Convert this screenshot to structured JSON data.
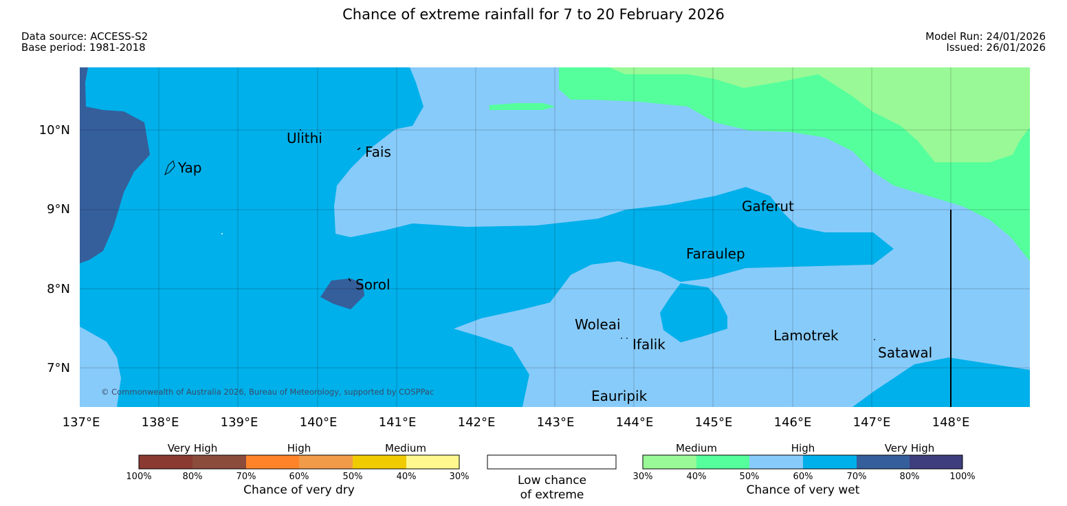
{
  "title": "Chance of extreme rainfall for 7 to 20 February 2026",
  "source": {
    "data_source": "Data source: ACCESS-S2",
    "base_period": "Base period: 1981-2018"
  },
  "run": {
    "model_run": "Model Run: 24/01/2026",
    "issued": "Issued: 26/01/2026"
  },
  "map": {
    "copyright": "© Commonwealth of Australia 2026, Bureau of Meteorology, supported by COSPPac",
    "lon_labels": [
      "137°E",
      "138°E",
      "139°E",
      "140°E",
      "141°E",
      "142°E",
      "143°E",
      "144°E",
      "145°E",
      "146°E",
      "147°E",
      "148°E"
    ],
    "lat_labels": [
      "10°N",
      "9°N",
      "8°N",
      "7°N"
    ],
    "places": [
      "Ulithi",
      "Fais",
      "Yap",
      "Gaferut",
      "Faraulep",
      "Sorol",
      "Woleai",
      "Ifalik",
      "Lamotrek",
      "Satawal",
      "Eauripik"
    ]
  },
  "colors": {
    "wet_medium_30": "#99f996",
    "wet_medium_40": "#55ff9c",
    "wet_high_50": "#87cbfa",
    "wet_high_60": "#00b0ea",
    "wet_vhigh_70": "#355f9b",
    "wet_vhigh_80": "#3e3e7e",
    "dry_vhigh_100": "#8b3a32",
    "dry_vhigh_80": "#8c4c3c",
    "dry_high_70": "#ff8429",
    "dry_high_60": "#f19b48",
    "dry_med_50": "#f0cb00",
    "dry_med_40": "#fff88e"
  },
  "legend": {
    "dry": {
      "groups": [
        "Very High",
        "High",
        "Medium"
      ],
      "ticks": [
        "100%",
        "80%",
        "70%",
        "60%",
        "50%",
        "40%",
        "30%"
      ],
      "caption": "Chance of very dry"
    },
    "neutral": {
      "caption_line1": "Low chance",
      "caption_line2": "of extreme"
    },
    "wet": {
      "groups": [
        "Medium",
        "High",
        "Very High"
      ],
      "ticks": [
        "30%",
        "40%",
        "50%",
        "60%",
        "70%",
        "80%",
        "100%"
      ],
      "caption": "Chance of very wet"
    }
  }
}
